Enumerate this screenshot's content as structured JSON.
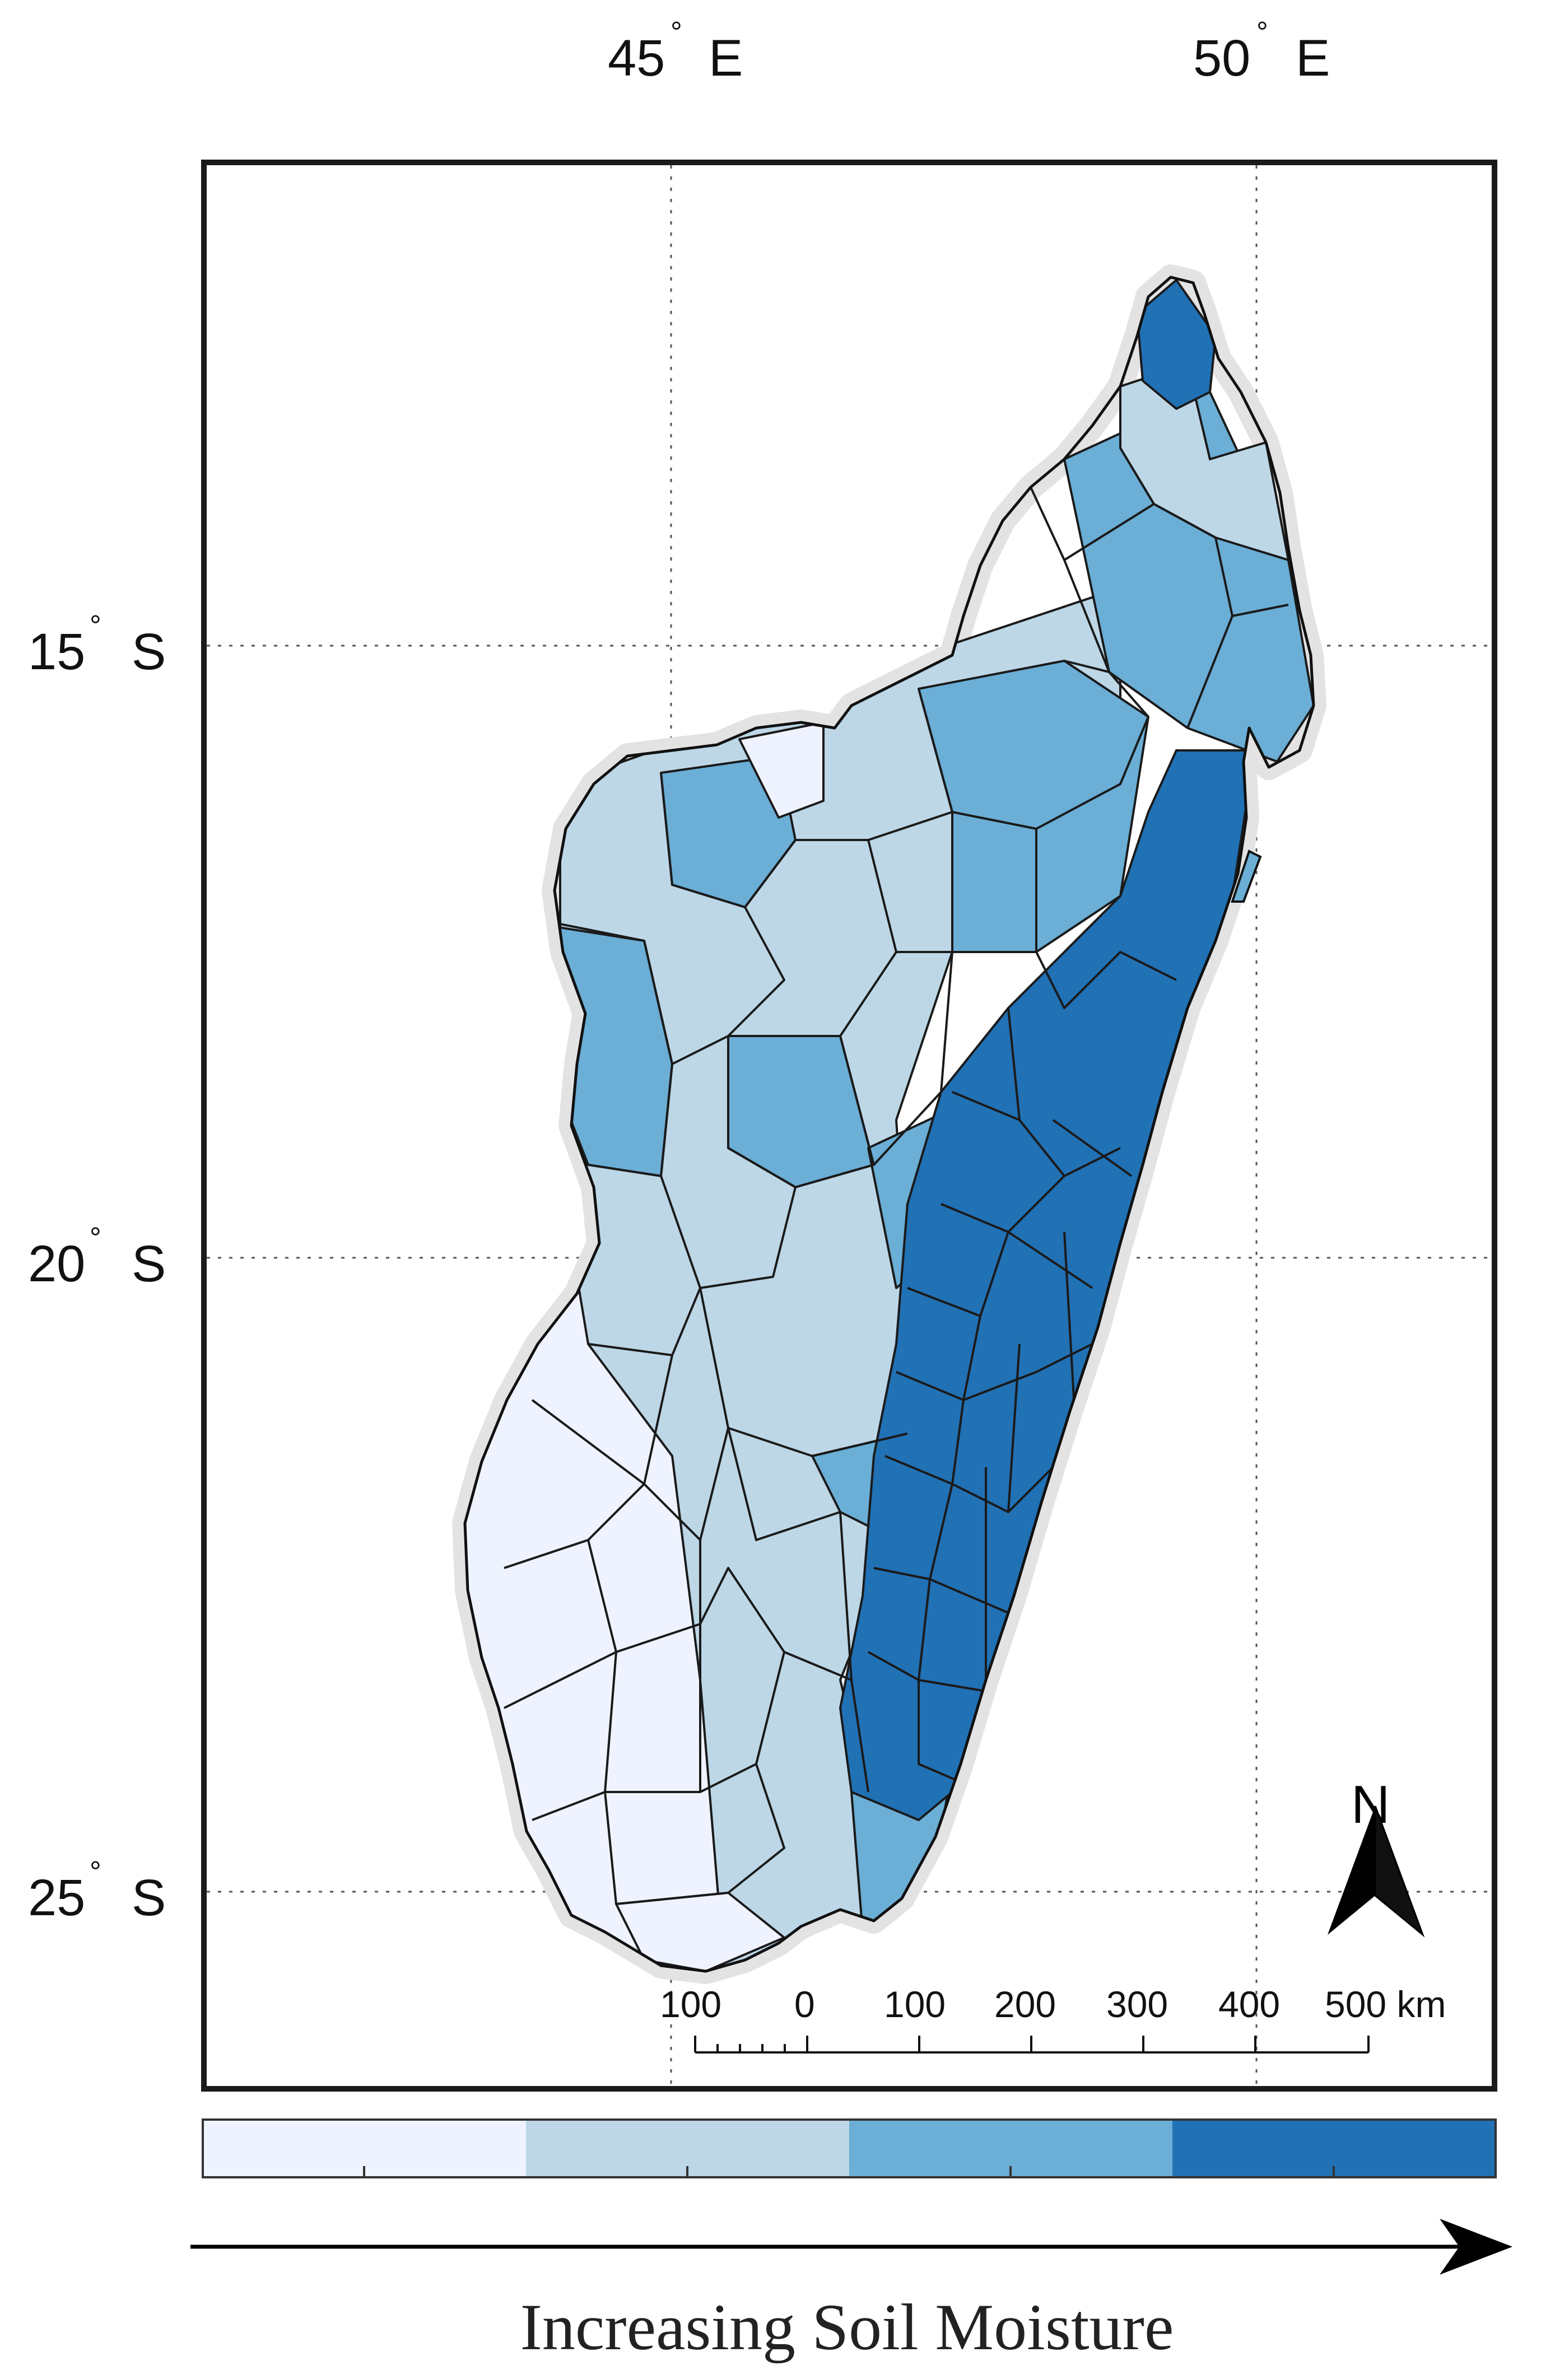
{
  "axes": {
    "lon_labels": [
      {
        "text": "45",
        "deg": "°",
        "suffix": "E"
      },
      {
        "text": "50",
        "deg": "°",
        "suffix": "E"
      }
    ],
    "lat_labels": [
      {
        "text": "15",
        "deg": "°",
        "suffix": "S"
      },
      {
        "text": "20",
        "deg": "°",
        "suffix": "S"
      },
      {
        "text": "25",
        "deg": "°",
        "suffix": "S"
      }
    ],
    "grid": "dotted"
  },
  "north_arrow": {
    "label": "N"
  },
  "scale_bar": {
    "ticks": [
      "100",
      "0",
      "100",
      "200",
      "300",
      "400",
      "500 km"
    ]
  },
  "legend": {
    "classes": 4,
    "colors": [
      "#eff3ff",
      "#bdd7e7",
      "#6baed6",
      "#2171b5"
    ],
    "caption": "Increasing Soil Moisture"
  },
  "colors": {
    "class1": "#eff3ff",
    "class2": "#bdd7e7",
    "class3": "#6baed6",
    "class4": "#2171b5",
    "border": "#1a1a1a",
    "halo": "#e3e3e3"
  }
}
